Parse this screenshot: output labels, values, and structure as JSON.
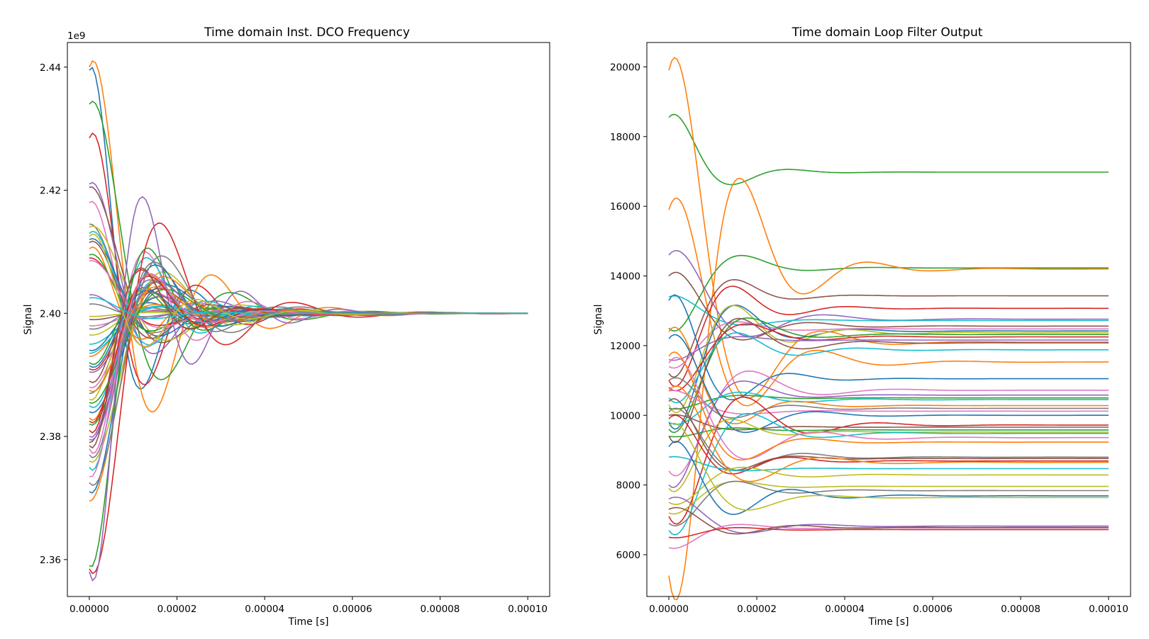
{
  "chart_data": [
    {
      "type": "line",
      "title": "Time domain Inst. DCO Frequency",
      "xlabel": "Time [s]",
      "ylabel": "Signal",
      "y_offset_label": "1e9",
      "xlim": [
        -5e-06,
        0.000105
      ],
      "ylim": [
        2.354,
        2.444
      ],
      "xticks": [
        0,
        2e-05,
        4e-05,
        6e-05,
        8e-05,
        0.0001
      ],
      "xtick_labels": [
        "0.00000",
        "0.00002",
        "0.00004",
        "0.00006",
        "0.00008",
        "0.00010"
      ],
      "yticks": [
        2.36,
        2.38,
        2.4,
        2.42,
        2.44
      ],
      "ytick_labels": [
        "2.36",
        "2.38",
        "2.40",
        "2.42",
        "2.44"
      ],
      "settle_value": 2.4,
      "grid": false,
      "series_count": 60,
      "series_start_values": [
        2.4395,
        2.44,
        2.434,
        2.4285,
        2.421,
        2.4205,
        2.418,
        2.4145,
        2.414,
        2.413,
        2.412,
        2.4105,
        2.4095,
        2.409,
        2.403,
        2.399,
        2.398,
        2.3975,
        2.3965,
        2.395,
        2.394,
        2.393,
        2.392,
        2.391,
        2.3905,
        2.389,
        2.388,
        2.387,
        2.386,
        2.385,
        2.384,
        2.383,
        2.382,
        2.381,
        2.38,
        2.379,
        2.378,
        2.377,
        2.376,
        2.375,
        2.371,
        2.3695,
        2.359,
        2.3585,
        2.358,
        2.4115,
        2.4085,
        2.4015,
        2.3995,
        2.3935,
        2.3915,
        2.3875,
        2.3855,
        2.3825,
        2.3795,
        2.3785,
        2.3735,
        2.3725,
        2.4125,
        2.4025
      ],
      "colors": [
        "#1f77b4",
        "#ff7f0e",
        "#2ca02c",
        "#d62728",
        "#9467bd",
        "#8c564b",
        "#e377c2",
        "#7f7f7f",
        "#bcbd22",
        "#17becf"
      ]
    },
    {
      "type": "line",
      "title": "Time domain Loop Filter Output",
      "xlabel": "Time [s]",
      "ylabel": "Signal",
      "xlim": [
        -5e-06,
        0.000105
      ],
      "ylim": [
        4800,
        20700
      ],
      "xticks": [
        0,
        2e-05,
        4e-05,
        6e-05,
        8e-05,
        0.0001
      ],
      "xtick_labels": [
        "0.00000",
        "0.00002",
        "0.00004",
        "0.00006",
        "0.00008",
        "0.00010"
      ],
      "yticks": [
        6000,
        8000,
        10000,
        12000,
        14000,
        16000,
        18000,
        20000
      ],
      "ytick_labels": [
        "6000",
        "8000",
        "10000",
        "12000",
        "14000",
        "16000",
        "18000",
        "20000"
      ],
      "grid": false,
      "series": [
        {
          "start": 18550,
          "final": 16980,
          "color": "#2ca02c"
        },
        {
          "start": 19900,
          "final": 12100,
          "color": "#ff7f0e"
        },
        {
          "start": 15900,
          "final": 11530,
          "color": "#ff7f0e"
        },
        {
          "start": 12500,
          "final": 14230,
          "color": "#2ca02c"
        },
        {
          "start": 5400,
          "final": 14200,
          "color": "#ff7f0e"
        },
        {
          "start": 11200,
          "final": 13430,
          "color": "#8c564b"
        },
        {
          "start": 11000,
          "final": 13070,
          "color": "#d62728"
        },
        {
          "start": 14600,
          "final": 12760,
          "color": "#9467bd"
        },
        {
          "start": 13400,
          "final": 12720,
          "color": "#17becf"
        },
        {
          "start": 14000,
          "final": 12560,
          "color": "#8c564b"
        },
        {
          "start": 11400,
          "final": 12480,
          "color": "#e377c2"
        },
        {
          "start": 9800,
          "final": 12420,
          "color": "#1f77b4"
        },
        {
          "start": 10300,
          "final": 12370,
          "color": "#bcbd22"
        },
        {
          "start": 9600,
          "final": 12320,
          "color": "#2ca02c"
        },
        {
          "start": 10800,
          "final": 12250,
          "color": "#d62728"
        },
        {
          "start": 11600,
          "final": 12160,
          "color": "#9467bd"
        },
        {
          "start": 9400,
          "final": 12080,
          "color": "#8c564b"
        },
        {
          "start": 10500,
          "final": 11880,
          "color": "#17becf"
        },
        {
          "start": 13300,
          "final": 11050,
          "color": "#1f77b4"
        },
        {
          "start": 8400,
          "final": 10720,
          "color": "#e377c2"
        },
        {
          "start": 8000,
          "final": 10580,
          "color": "#9467bd"
        },
        {
          "start": 10200,
          "final": 10500,
          "color": "#2ca02c"
        },
        {
          "start": 9800,
          "final": 10450,
          "color": "#17becf"
        },
        {
          "start": 12400,
          "final": 10280,
          "color": "#ff7f0e"
        },
        {
          "start": 11000,
          "final": 10200,
          "color": "#7f7f7f"
        },
        {
          "start": 10700,
          "final": 10120,
          "color": "#e377c2"
        },
        {
          "start": 12200,
          "final": 10000,
          "color": "#1f77b4"
        },
        {
          "start": 7100,
          "final": 9720,
          "color": "#d62728"
        },
        {
          "start": 10000,
          "final": 9660,
          "color": "#8c564b"
        },
        {
          "start": 9400,
          "final": 9580,
          "color": "#2ca02c"
        },
        {
          "start": 7900,
          "final": 9520,
          "color": "#bcbd22"
        },
        {
          "start": 6700,
          "final": 9480,
          "color": "#17becf"
        },
        {
          "start": 11500,
          "final": 9360,
          "color": "#e377c2"
        },
        {
          "start": 11700,
          "final": 9230,
          "color": "#ff7f0e"
        },
        {
          "start": 10100,
          "final": 8800,
          "color": "#7f7f7f"
        },
        {
          "start": 10400,
          "final": 8760,
          "color": "#8c564b"
        },
        {
          "start": 9900,
          "final": 8690,
          "color": "#d62728"
        },
        {
          "start": 10700,
          "final": 8650,
          "color": "#ff7f0e"
        },
        {
          "start": 8800,
          "final": 8470,
          "color": "#17becf"
        },
        {
          "start": 7500,
          "final": 8290,
          "color": "#bcbd22"
        },
        {
          "start": 7200,
          "final": 7960,
          "color": "#bcbd22"
        },
        {
          "start": 6900,
          "final": 7840,
          "color": "#7f7f7f"
        },
        {
          "start": 9100,
          "final": 7690,
          "color": "#1f77b4"
        },
        {
          "start": 9700,
          "final": 7640,
          "color": "#bcbd22"
        },
        {
          "start": 7600,
          "final": 6820,
          "color": "#9467bd"
        },
        {
          "start": 6200,
          "final": 6770,
          "color": "#e377c2"
        },
        {
          "start": 6500,
          "final": 6720,
          "color": "#d62728"
        },
        {
          "start": 7300,
          "final": 6780,
          "color": "#8c564b"
        }
      ]
    }
  ]
}
